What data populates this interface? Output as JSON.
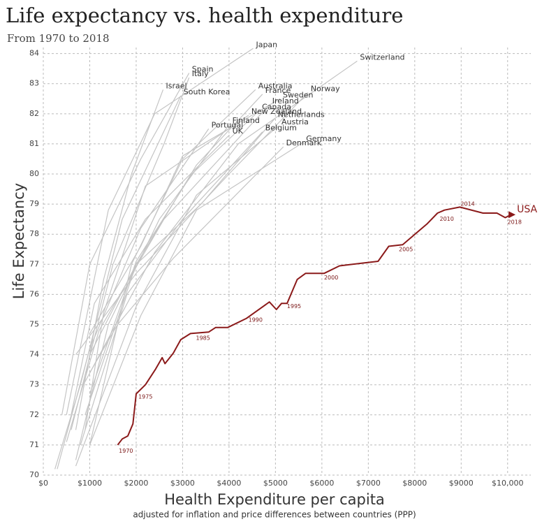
{
  "chart_data": {
    "type": "line",
    "title": "Life expectancy vs. health expenditure",
    "subtitle": "From 1970 to 2018",
    "x_label": "Health Expenditure per capita",
    "x_sublabel": "adjusted for inflation and price differences between countries (PPP)",
    "y_label": "Life Expectancy",
    "xlim": [
      0,
      10500
    ],
    "ylim": [
      70,
      84.2
    ],
    "xticks": [
      {
        "value": 0,
        "label": "$0"
      },
      {
        "value": 1000,
        "label": "$1000"
      },
      {
        "value": 2000,
        "label": "$2000"
      },
      {
        "value": 3000,
        "label": "$3000"
      },
      {
        "value": 4000,
        "label": "$4000"
      },
      {
        "value": 5000,
        "label": "$5000"
      },
      {
        "value": 6000,
        "label": "$6000"
      },
      {
        "value": 7000,
        "label": "$7000"
      },
      {
        "value": 8000,
        "label": "$8000"
      },
      {
        "value": 9000,
        "label": "$9000"
      },
      {
        "value": 10000,
        "label": "$10,000"
      }
    ],
    "yticks": [
      70,
      71,
      72,
      73,
      74,
      75,
      76,
      77,
      78,
      79,
      80,
      81,
      82,
      83,
      84
    ],
    "grid": true,
    "series": [
      {
        "name": "Japan",
        "color": "#c4c4c4",
        "x": [
          500,
          1400,
          2400,
          4520
        ],
        "values": [
          72,
          78.8,
          82,
          84.17
        ]
      },
      {
        "name": "Switzerland",
        "color": "#c4c4c4",
        "x": [
          900,
          2400,
          4200,
          6760
        ],
        "values": [
          73.1,
          77.4,
          81,
          83.75
        ]
      },
      {
        "name": "Spain",
        "color": "#c4c4c4",
        "x": [
          400,
          1000,
          2100,
          3140
        ],
        "values": [
          72,
          77,
          80.5,
          83.35
        ]
      },
      {
        "name": "Italy",
        "color": "#c4c4c4",
        "x": [
          600,
          1500,
          2600,
          3140
        ],
        "values": [
          71.5,
          77,
          81,
          83.2
        ]
      },
      {
        "name": "Israel",
        "color": "#c4c4c4",
        "x": [
          700,
          1300,
          1900,
          2580
        ],
        "values": [
          71.5,
          76.5,
          80,
          82.8
        ]
      },
      {
        "name": "South Korea",
        "color": "#c4c4c4",
        "x": [
          250,
          800,
          1700,
          2960
        ],
        "values": [
          70.2,
          73,
          78.5,
          82.6
        ]
      },
      {
        "name": "Australia",
        "color": "#c4c4c4",
        "x": [
          1000,
          1900,
          3000,
          4570
        ],
        "values": [
          71,
          77,
          80.5,
          82.8
        ]
      },
      {
        "name": "France",
        "color": "#c4c4c4",
        "x": [
          900,
          2000,
          3300,
          4720
        ],
        "values": [
          72,
          77,
          80.3,
          82.65
        ]
      },
      {
        "name": "Norway",
        "color": "#c4c4c4",
        "x": [
          700,
          2000,
          4000,
          5700
        ],
        "values": [
          74,
          76.7,
          80,
          82.7
        ]
      },
      {
        "name": "Sweden",
        "color": "#c4c4c4",
        "x": [
          1000,
          2100,
          3000,
          5100
        ],
        "values": [
          74.7,
          77.6,
          80.6,
          82.5
        ]
      },
      {
        "name": "Ireland",
        "color": "#c4c4c4",
        "x": [
          500,
          1200,
          2600,
          4870
        ],
        "values": [
          71.1,
          74.8,
          78.5,
          82.3
        ]
      },
      {
        "name": "Canada",
        "color": "#c4c4c4",
        "x": [
          1000,
          2000,
          3200,
          4650
        ],
        "values": [
          72.7,
          77.1,
          80,
          82.1
        ]
      },
      {
        "name": "New Zealand",
        "color": "#c4c4c4",
        "x": [
          900,
          1300,
          2200,
          4420
        ],
        "values": [
          71.5,
          75.4,
          79.6,
          81.95
        ]
      },
      {
        "name": "Netherlands",
        "color": "#c4c4c4",
        "x": [
          1000,
          2000,
          3400,
          4990
        ],
        "values": [
          74,
          77,
          79,
          81.85
        ]
      },
      {
        "name": "Finland",
        "color": "#c4c4c4",
        "x": [
          700,
          1400,
          2500,
          4010
        ],
        "values": [
          70.5,
          75,
          78.5,
          81.65
        ]
      },
      {
        "name": "Austria",
        "color": "#c4c4c4",
        "x": [
          700,
          2000,
          3300,
          5070
        ],
        "values": [
          70.3,
          75.6,
          79.3,
          81.6
        ]
      },
      {
        "name": "Portugal",
        "color": "#c4c4c4",
        "x": [
          300,
          1000,
          2100,
          3560
        ],
        "values": [
          70.2,
          74.2,
          78.2,
          81.5
        ]
      },
      {
        "name": "Belgium",
        "color": "#c4c4c4",
        "x": [
          800,
          1800,
          3000,
          4720
        ],
        "values": [
          71,
          76,
          78.5,
          81.4
        ]
      },
      {
        "name": "UK",
        "color": "#c4c4c4",
        "x": [
          600,
          1100,
          2200,
          4010
        ],
        "values": [
          72,
          75.7,
          78.5,
          81.3
        ]
      },
      {
        "name": "Germany",
        "color": "#c4c4c4",
        "x": [
          1000,
          2100,
          3300,
          5600
        ],
        "values": [
          71,
          75.3,
          78.8,
          81.05
        ]
      },
      {
        "name": "Denmark",
        "color": "#c4c4c4",
        "x": [
          1000,
          1600,
          2800,
          5170
        ],
        "values": [
          73.4,
          75,
          77.2,
          80.9
        ]
      },
      {
        "name": "USA",
        "color": "#8b1a1a",
        "x": [
          1600,
          1700,
          1820,
          1930,
          2000,
          2200,
          2410,
          2560,
          2620,
          2800,
          2960,
          3170,
          3560,
          3710,
          3970,
          4370,
          4870,
          5020,
          5130,
          5250,
          5470,
          5650,
          6050,
          6380,
          7210,
          7440,
          7740,
          8270,
          8490,
          8640,
          8970,
          9470,
          9770,
          9950,
          10080
        ],
        "values": [
          71.0,
          71.2,
          71.3,
          71.7,
          72.7,
          73.0,
          73.5,
          73.9,
          73.7,
          74.05,
          74.5,
          74.7,
          74.75,
          74.9,
          74.9,
          75.2,
          75.75,
          75.5,
          75.7,
          75.7,
          76.5,
          76.7,
          76.7,
          76.95,
          77.1,
          77.6,
          77.65,
          78.35,
          78.7,
          78.8,
          78.9,
          78.7,
          78.7,
          78.55,
          78.65
        ]
      }
    ],
    "annotations": [
      {
        "text": "1970",
        "x": 1780,
        "y": 70.8
      },
      {
        "text": "1975",
        "x": 2200,
        "y": 72.6
      },
      {
        "text": "1985",
        "x": 3440,
        "y": 74.55
      },
      {
        "text": "1990",
        "x": 4570,
        "y": 75.15
      },
      {
        "text": "1995",
        "x": 5400,
        "y": 75.6
      },
      {
        "text": "2000",
        "x": 6200,
        "y": 76.55
      },
      {
        "text": "2005",
        "x": 7810,
        "y": 77.5
      },
      {
        "text": "2010",
        "x": 8690,
        "y": 78.5
      },
      {
        "text": "2014",
        "x": 9140,
        "y": 79.0
      },
      {
        "text": "2018",
        "x": 10150,
        "y": 78.4
      }
    ]
  }
}
